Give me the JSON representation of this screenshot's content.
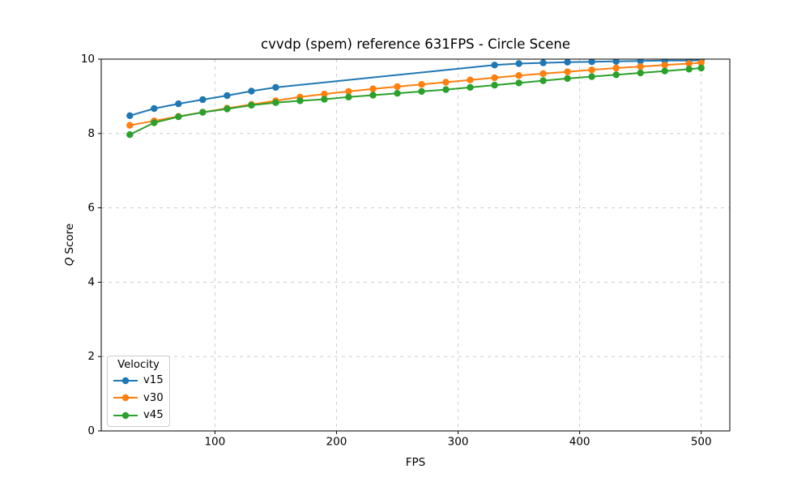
{
  "chart_data": {
    "type": "line",
    "title": "cvvdp (spem) reference 631FPS - Circle Scene",
    "xlabel": "FPS",
    "ylabel": "Q Score",
    "ylabel_math_part": "Q",
    "ylabel_text_part": "Score",
    "xlim": [
      6.5,
      523.5
    ],
    "ylim": [
      0,
      10
    ],
    "xticks": [
      100,
      200,
      300,
      400,
      500
    ],
    "yticks": [
      0,
      2,
      4,
      6,
      8,
      10
    ],
    "grid": true,
    "grid_color": "#cccccc",
    "axis_color": "#000000",
    "background_color": "#ffffff",
    "legend": {
      "title": "Velocity",
      "position": "lower-left"
    },
    "series": [
      {
        "name": "v15",
        "color": "#1f77b4",
        "x": [
          30,
          50,
          70,
          90,
          110,
          130,
          150,
          330,
          350,
          370,
          390,
          410,
          430,
          450,
          470,
          490,
          500
        ],
        "y": [
          8.48,
          8.67,
          8.8,
          8.91,
          9.02,
          9.14,
          9.24,
          9.84,
          9.88,
          9.9,
          9.92,
          9.93,
          9.94,
          9.95,
          9.96,
          9.96,
          9.97
        ]
      },
      {
        "name": "v30",
        "color": "#ff7f0e",
        "x": [
          30,
          50,
          70,
          90,
          110,
          130,
          150,
          170,
          190,
          210,
          230,
          250,
          270,
          290,
          310,
          330,
          350,
          370,
          390,
          410,
          430,
          450,
          470,
          490,
          500
        ],
        "y": [
          8.22,
          8.34,
          8.46,
          8.57,
          8.68,
          8.78,
          8.88,
          8.98,
          9.06,
          9.13,
          9.2,
          9.26,
          9.32,
          9.38,
          9.44,
          9.5,
          9.56,
          9.61,
          9.66,
          9.71,
          9.76,
          9.8,
          9.84,
          9.88,
          9.9
        ]
      },
      {
        "name": "v45",
        "color": "#2ca02c",
        "x": [
          30,
          50,
          70,
          90,
          110,
          130,
          150,
          170,
          190,
          210,
          230,
          250,
          270,
          290,
          310,
          330,
          350,
          370,
          390,
          410,
          430,
          450,
          470,
          490,
          500
        ],
        "y": [
          7.97,
          8.29,
          8.45,
          8.57,
          8.66,
          8.76,
          8.83,
          8.88,
          8.92,
          8.98,
          9.03,
          9.08,
          9.13,
          9.18,
          9.24,
          9.3,
          9.36,
          9.42,
          9.48,
          9.53,
          9.58,
          9.63,
          9.68,
          9.73,
          9.76
        ]
      }
    ]
  }
}
